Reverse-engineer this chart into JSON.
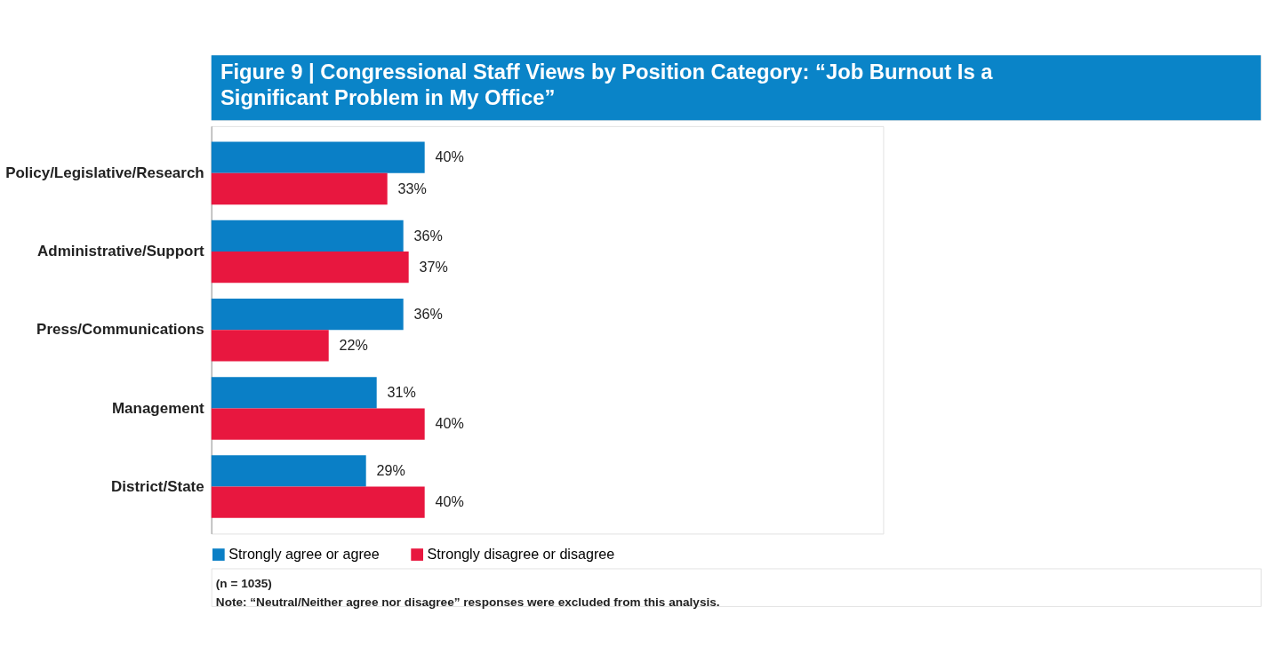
{
  "chart_data": {
    "type": "bar",
    "orientation": "horizontal",
    "title": "Figure 9 | Congressional Staff Views by Position Category: “Job Burnout Is a Significant Problem in My Office”",
    "categories": [
      "Policy/Legislative/Research",
      "Administrative/Support",
      "Press/Communications",
      "Management",
      "District/State"
    ],
    "series": [
      {
        "name": "Strongly agree or agree",
        "color": "#0a7fc6",
        "values": [
          40,
          36,
          36,
          31,
          29
        ],
        "value_labels": [
          "40%",
          "36%",
          "36%",
          "31%",
          "29%"
        ]
      },
      {
        "name": "Strongly disagree or disagree",
        "color": "#e8173f",
        "values": [
          33,
          37,
          22,
          40,
          40
        ],
        "value_labels": [
          "33%",
          "37%",
          "22%",
          "40%",
          "40%"
        ]
      }
    ],
    "legend": "bottom",
    "tick_labels": "y",
    "annotations": [
      "(n = 1035)",
      "Note: “Neutral/Neither agree nor disagree” responses were excluded from this analysis."
    ]
  }
}
